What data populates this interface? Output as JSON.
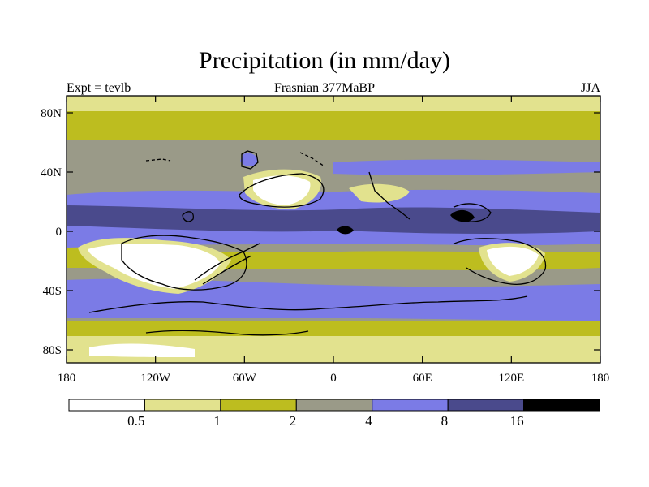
{
  "title": "Precipitation (in mm/day)",
  "experiment": "Expt = tevlb",
  "period": "Frasnian 377MaBP",
  "season": "JJA",
  "lat_ticks": [
    "80N",
    "40N",
    "0",
    "40S",
    "80S"
  ],
  "lon_ticks": [
    "180",
    "120W",
    "60W",
    "0",
    "60E",
    "120E",
    "180"
  ],
  "colorbar": {
    "levels": [
      "0.5",
      "1",
      "2",
      "4",
      "8",
      "16"
    ],
    "colors": [
      "#ffffff",
      "#e2e28e",
      "#bdbd1f",
      "#9a9a88",
      "#7b7be6",
      "#4a4a8c",
      "#000000"
    ]
  },
  "colors": {
    "frame": "#000000",
    "coastline": "#000000"
  }
}
